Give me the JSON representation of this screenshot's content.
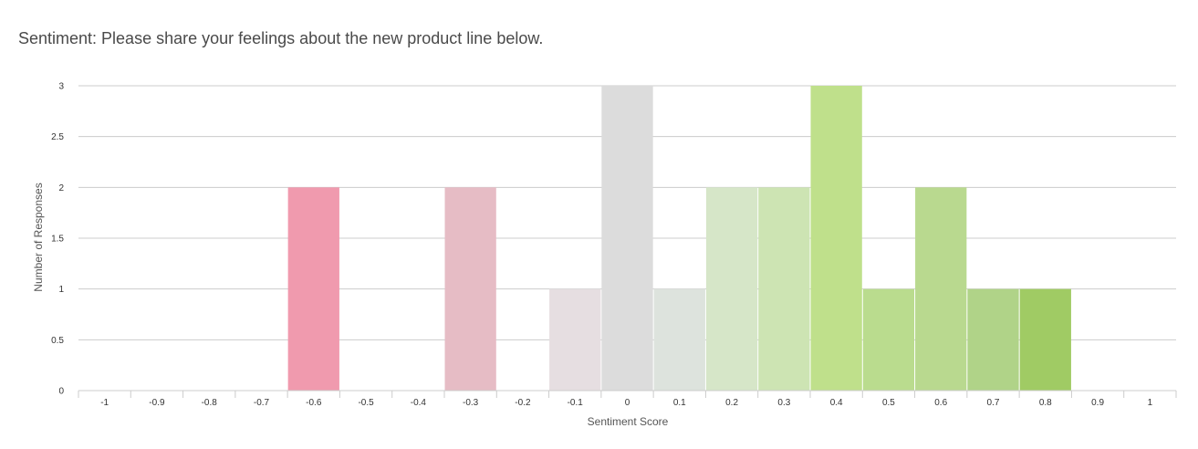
{
  "chart_data": {
    "type": "bar",
    "title": "Sentiment: Please share your feelings about the new product line below.",
    "xlabel": "Sentiment Score",
    "ylabel": "Number of Responses",
    "categories": [
      "-1",
      "-0.9",
      "-0.8",
      "-0.7",
      "-0.6",
      "-0.5",
      "-0.4",
      "-0.3",
      "-0.2",
      "-0.1",
      "0",
      "0.1",
      "0.2",
      "0.3",
      "0.4",
      "0.5",
      "0.6",
      "0.7",
      "0.8",
      "0.9",
      "1"
    ],
    "values": [
      0,
      0,
      0,
      0,
      2,
      0,
      0,
      2,
      0,
      1,
      3,
      1,
      2,
      2,
      3,
      1,
      2,
      1,
      1,
      0,
      0
    ],
    "colors": [
      "#f09aae",
      "#f09aae",
      "#f09aae",
      "#f09aae",
      "#f09aae",
      "#e8b9c3",
      "#e8b9c3",
      "#e6bcc5",
      "#e6dde0",
      "#e6dee1",
      "#dcdcdc",
      "#dde3dd",
      "#d6e6c8",
      "#cde4b3",
      "#bfe08b",
      "#badc8e",
      "#b9d98f",
      "#b0d388",
      "#a0cb64",
      "#a0cb64",
      "#a0cb64"
    ],
    "yticks": [
      "0",
      "0.5",
      "1",
      "1.5",
      "2",
      "2.5",
      "3"
    ],
    "ylim": [
      0,
      3
    ],
    "grid": true,
    "legend": "none"
  }
}
